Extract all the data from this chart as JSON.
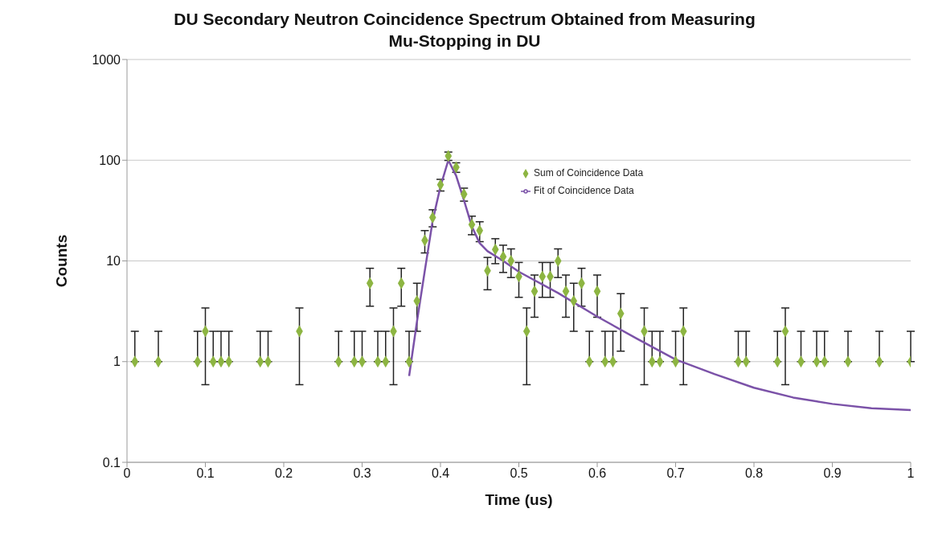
{
  "chart_data": {
    "type": "scatter",
    "title": "DU Secondary Neutron Coincidence Spectrum Obtained from Measuring Mu-Stopping in DU",
    "xlabel": "Time (us)",
    "ylabel": "Counts",
    "log": "y",
    "grid": "y",
    "legend": "top right",
    "xlim": [
      0,
      1
    ],
    "ylim": [
      0.1,
      1000
    ],
    "xticks": [
      0,
      0.1,
      0.2,
      0.3,
      0.4,
      0.5,
      0.6,
      0.7,
      0.8,
      0.9,
      1
    ],
    "yticks": [
      0.1,
      1,
      10,
      100,
      1000
    ],
    "series": [
      {
        "name": "Sum of Coincidence Data",
        "marker": "diamond",
        "color": "#8db542",
        "x": [
          0.01,
          0.04,
          0.09,
          0.1,
          0.11,
          0.12,
          0.13,
          0.17,
          0.18,
          0.22,
          0.27,
          0.29,
          0.3,
          0.31,
          0.32,
          0.33,
          0.34,
          0.35,
          0.36,
          0.37,
          0.38,
          0.39,
          0.4,
          0.41,
          0.42,
          0.43,
          0.44,
          0.45,
          0.46,
          0.47,
          0.48,
          0.49,
          0.5,
          0.51,
          0.52,
          0.53,
          0.54,
          0.55,
          0.56,
          0.57,
          0.58,
          0.59,
          0.6,
          0.61,
          0.62,
          0.63,
          0.66,
          0.67,
          0.68,
          0.7,
          0.71,
          0.78,
          0.79,
          0.83,
          0.84,
          0.86,
          0.88,
          0.89,
          0.92,
          0.96,
          1.0
        ],
        "values": [
          1,
          1,
          1,
          2,
          1,
          1,
          1,
          1,
          1,
          2,
          1,
          1,
          1,
          6,
          1,
          1,
          2,
          6,
          1,
          4,
          16,
          27,
          57,
          110,
          85,
          46,
          23,
          20,
          8,
          13,
          11,
          10,
          7,
          2,
          5,
          7,
          7,
          10,
          5,
          4,
          6,
          1,
          5,
          1,
          1,
          3,
          2,
          1,
          1,
          1,
          2,
          1,
          1,
          1,
          2,
          1,
          1,
          1,
          1,
          1,
          1
        ],
        "errors": [
          [
            1,
            2
          ],
          [
            1,
            2
          ],
          [
            1,
            2
          ],
          [
            0.59,
            3.41
          ],
          [
            1,
            2
          ],
          [
            1,
            2
          ],
          [
            1,
            2
          ],
          [
            1,
            2
          ],
          [
            1,
            2
          ],
          [
            0.59,
            3.41
          ],
          [
            1,
            2
          ],
          [
            1,
            2
          ],
          [
            1,
            2
          ],
          [
            3.55,
            8.45
          ],
          [
            1,
            2
          ],
          [
            1,
            2
          ],
          [
            0.59,
            3.41
          ],
          [
            3.55,
            8.45
          ],
          [
            1,
            2
          ],
          [
            2,
            6
          ],
          [
            12,
            20
          ],
          [
            21.8,
            32.2
          ],
          [
            49.45,
            64.55
          ],
          [
            99.51,
            120.49
          ],
          [
            75.78,
            94.22
          ],
          [
            39.22,
            52.78
          ],
          [
            18.2,
            27.8
          ],
          [
            15.53,
            24.47
          ],
          [
            5.17,
            10.83
          ],
          [
            9.39,
            16.61
          ],
          [
            7.68,
            14.32
          ],
          [
            6.84,
            13.16
          ],
          [
            4.35,
            9.65
          ],
          [
            0.59,
            3.41
          ],
          [
            2.76,
            7.24
          ],
          [
            4.35,
            9.65
          ],
          [
            4.35,
            9.65
          ],
          [
            6.84,
            13.16
          ],
          [
            2.76,
            7.24
          ],
          [
            2,
            6
          ],
          [
            3.55,
            8.45
          ],
          [
            1,
            2
          ],
          [
            2.76,
            7.24
          ],
          [
            1,
            2
          ],
          [
            1,
            2
          ],
          [
            1.27,
            4.73
          ],
          [
            0.59,
            3.41
          ],
          [
            1,
            2
          ],
          [
            1,
            2
          ],
          [
            1,
            2
          ],
          [
            0.59,
            3.41
          ],
          [
            1,
            2
          ],
          [
            1,
            2
          ],
          [
            1,
            2
          ],
          [
            0.59,
            3.41
          ],
          [
            1,
            2
          ],
          [
            1,
            2
          ],
          [
            1,
            2
          ],
          [
            1,
            2
          ],
          [
            1,
            2
          ],
          [
            1,
            2
          ]
        ]
      },
      {
        "name": "Fit of Coincidence Data",
        "type": "line",
        "marker": "none",
        "color": "#7b52a8",
        "x": [
          0.36,
          0.37,
          0.38,
          0.39,
          0.4,
          0.41,
          0.42,
          0.43,
          0.44,
          0.45,
          0.46,
          0.48,
          0.5,
          0.55,
          0.6,
          0.65,
          0.7,
          0.75,
          0.8,
          0.85,
          0.9,
          0.95,
          1.0
        ],
        "values": [
          0.72,
          2.5,
          8,
          25,
          55,
          100,
          70,
          40,
          22,
          15,
          12.5,
          10,
          7.8,
          4.8,
          2.8,
          1.7,
          1.05,
          0.75,
          0.55,
          0.44,
          0.38,
          0.345,
          0.33
        ]
      }
    ]
  }
}
